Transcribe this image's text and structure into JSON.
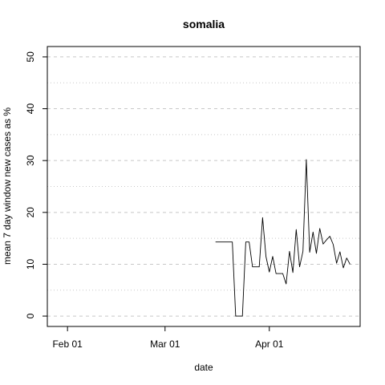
{
  "chart_data": {
    "type": "line",
    "title": "somalia",
    "xlabel": "date",
    "ylabel": "mean  7  day window new cases as %",
    "x_ticks": [
      {
        "date": "2020-02-01",
        "label": "Feb 01"
      },
      {
        "date": "2020-03-01",
        "label": "Mar 01"
      },
      {
        "date": "2020-04-01",
        "label": "Apr 01"
      }
    ],
    "y_ticks": [
      0,
      10,
      20,
      30,
      40,
      50
    ],
    "xlim": [
      "2020-01-26",
      "2020-04-28"
    ],
    "ylim": [
      -2,
      52
    ],
    "grid": {
      "horizontal_dashed": [
        0,
        10,
        20,
        30,
        40,
        50
      ],
      "horizontal_dotted": [
        5,
        15,
        25,
        35,
        45
      ]
    },
    "colors": {
      "line": "#000000",
      "grid": "#c8c8c8"
    },
    "series": [
      {
        "x": [
          "2020-03-16",
          "2020-03-17",
          "2020-03-18",
          "2020-03-19",
          "2020-03-20",
          "2020-03-21",
          "2020-03-22",
          "2020-03-23",
          "2020-03-24",
          "2020-03-25",
          "2020-03-26",
          "2020-03-27",
          "2020-03-28",
          "2020-03-29",
          "2020-03-30",
          "2020-03-31",
          "2020-04-01",
          "2020-04-02",
          "2020-04-03",
          "2020-04-04",
          "2020-04-05",
          "2020-04-06",
          "2020-04-07",
          "2020-04-08",
          "2020-04-09",
          "2020-04-10",
          "2020-04-11",
          "2020-04-12",
          "2020-04-13",
          "2020-04-14",
          "2020-04-15",
          "2020-04-16",
          "2020-04-17",
          "2020-04-18",
          "2020-04-19",
          "2020-04-20",
          "2020-04-21",
          "2020-04-22",
          "2020-04-23",
          "2020-04-24",
          "2020-04-25"
        ],
        "y": [
          14.3,
          14.3,
          14.3,
          14.3,
          14.3,
          14.3,
          0,
          0,
          0,
          14.3,
          14.3,
          9.5,
          9.5,
          9.5,
          19,
          11.5,
          8.5,
          11.5,
          8.2,
          8.2,
          8.2,
          6.2,
          12.5,
          8.4,
          16.7,
          9.5,
          12.5,
          30.2,
          12.3,
          16.2,
          12.1,
          16.9,
          13.9,
          14.7,
          15.4,
          13.8,
          10.2,
          12.4,
          9.3,
          11.2,
          10
        ]
      }
    ]
  }
}
